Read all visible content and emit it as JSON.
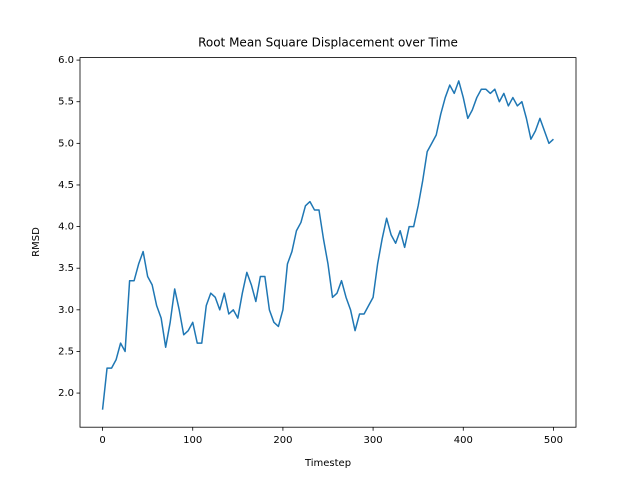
{
  "chart_data": {
    "type": "line",
    "title": "Root Mean Square Displacement over Time",
    "x_label": "Timestep",
    "y_label": "RMSD",
    "series": [
      {
        "name": "RMSD",
        "color": "#1f77b4",
        "x": [
          0,
          5,
          10,
          15,
          20,
          25,
          30,
          35,
          40,
          45,
          50,
          55,
          60,
          65,
          70,
          75,
          80,
          85,
          90,
          95,
          100,
          105,
          110,
          115,
          120,
          125,
          130,
          135,
          140,
          145,
          150,
          155,
          160,
          165,
          170,
          175,
          180,
          185,
          190,
          195,
          200,
          205,
          210,
          215,
          220,
          225,
          230,
          235,
          240,
          245,
          250,
          255,
          260,
          265,
          270,
          275,
          280,
          285,
          290,
          295,
          300,
          305,
          310,
          315,
          320,
          325,
          330,
          335,
          340,
          345,
          350,
          355,
          360,
          365,
          370,
          375,
          380,
          385,
          390,
          395,
          400,
          405,
          410,
          415,
          420,
          425,
          430,
          435,
          440,
          445,
          450,
          455,
          460,
          465,
          470,
          475,
          480,
          485,
          490,
          495,
          500
        ],
        "values": [
          1.8,
          2.3,
          2.3,
          2.4,
          2.6,
          2.5,
          3.35,
          3.35,
          3.55,
          3.7,
          3.4,
          3.3,
          3.05,
          2.9,
          2.55,
          2.85,
          3.25,
          3.0,
          2.7,
          2.75,
          2.85,
          2.6,
          2.6,
          3.05,
          3.2,
          3.15,
          3.0,
          3.2,
          2.95,
          3.0,
          2.9,
          3.2,
          3.45,
          3.3,
          3.1,
          3.4,
          3.4,
          3.0,
          2.85,
          2.8,
          3.0,
          3.55,
          3.7,
          3.95,
          4.05,
          4.25,
          4.3,
          4.2,
          4.2,
          3.85,
          3.55,
          3.15,
          3.2,
          3.35,
          3.15,
          3.0,
          2.75,
          2.95,
          2.95,
          3.05,
          3.15,
          3.55,
          3.85,
          4.1,
          3.9,
          3.8,
          3.95,
          3.75,
          4.0,
          4.0,
          4.25,
          4.55,
          4.9,
          5.0,
          5.1,
          5.35,
          5.55,
          5.7,
          5.6,
          5.75,
          5.55,
          5.3,
          5.4,
          5.55,
          5.65,
          5.65,
          5.6,
          5.65,
          5.5,
          5.6,
          5.45,
          5.55,
          5.45,
          5.5,
          5.3,
          5.05,
          5.15,
          5.3,
          5.15,
          5.0,
          5.05
        ]
      }
    ],
    "xlim": [
      -25,
      525
    ],
    "ylim": [
      1.59,
      6.03
    ],
    "xticks": [
      0,
      100,
      200,
      300,
      400,
      500
    ],
    "yticks": [
      {
        "value": 2,
        "label": "2.0"
      },
      2.5,
      {
        "value": 3,
        "label": "3.0"
      },
      3.5,
      {
        "value": 4,
        "label": "4.0"
      },
      4.5,
      {
        "value": 5,
        "label": "5.0"
      },
      5.5,
      {
        "value": 6,
        "label": "6.0"
      }
    ],
    "grid": false
  }
}
